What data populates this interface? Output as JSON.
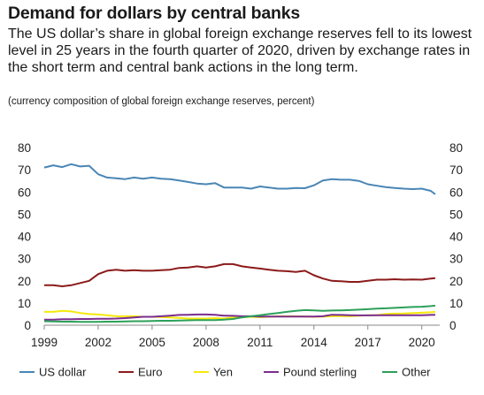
{
  "header": {
    "title": "Demand for dollars by central banks",
    "subtitle": "The US dollar’s share in global foreign exchange reserves fell to its lowest level in 25 years in the fourth quarter of 2020, driven by exchange rates in the short term and central bank actions in the long term.",
    "note": "(currency composition of global foreign exchange reserves, percent)"
  },
  "chart_data": {
    "type": "line",
    "title": "Demand for dollars by central banks",
    "xlabel": "",
    "ylabel": "",
    "xlim": [
      1999,
      2021.0
    ],
    "ylim": [
      0,
      80
    ],
    "grid": false,
    "legend_position": "bottom",
    "x_ticks": [
      1999,
      2002,
      2005,
      2008,
      2011,
      2014,
      2017,
      2020
    ],
    "x_tick_labels": [
      "1999",
      "2002",
      "2005",
      "2008",
      "2011",
      "2014",
      "2017",
      "2020"
    ],
    "y_ticks": [
      0,
      10,
      20,
      30,
      40,
      50,
      60,
      70,
      80
    ],
    "y_tick_labels": [
      "0",
      "10",
      "20",
      "30",
      "40",
      "50",
      "60",
      "70",
      "80"
    ],
    "x": [
      1999.0,
      1999.5,
      2000.0,
      2000.5,
      2001.0,
      2001.5,
      2002.0,
      2002.5,
      2003.0,
      2003.5,
      2004.0,
      2004.5,
      2005.0,
      2005.5,
      2006.0,
      2006.5,
      2007.0,
      2007.5,
      2008.0,
      2008.5,
      2009.0,
      2009.5,
      2010.0,
      2010.5,
      2011.0,
      2011.5,
      2012.0,
      2012.5,
      2013.0,
      2013.5,
      2014.0,
      2014.5,
      2015.0,
      2015.5,
      2016.0,
      2016.5,
      2017.0,
      2017.5,
      2018.0,
      2018.5,
      2019.0,
      2019.5,
      2020.0,
      2020.5,
      2020.75
    ],
    "series": [
      {
        "name": "US dollar",
        "color": "#4a86b5",
        "values": [
          71.0,
          72.0,
          71.2,
          72.5,
          71.5,
          71.8,
          68.0,
          66.5,
          66.2,
          65.8,
          66.5,
          66.0,
          66.5,
          66.0,
          65.8,
          65.2,
          64.5,
          63.8,
          63.5,
          64.0,
          62.0,
          62.0,
          62.0,
          61.5,
          62.5,
          62.0,
          61.5,
          61.5,
          61.8,
          61.7,
          63.0,
          65.2,
          65.8,
          65.5,
          65.5,
          65.0,
          63.5,
          62.8,
          62.2,
          61.8,
          61.5,
          61.3,
          61.5,
          60.5,
          59.0
        ]
      },
      {
        "name": "Euro",
        "color": "#8b1a1a",
        "values": [
          18.0,
          18.0,
          17.5,
          18.0,
          19.0,
          20.0,
          23.0,
          24.5,
          25.0,
          24.5,
          24.8,
          24.5,
          24.5,
          24.8,
          25.0,
          25.8,
          26.0,
          26.5,
          26.0,
          26.5,
          27.5,
          27.5,
          26.5,
          26.0,
          25.5,
          25.0,
          24.5,
          24.3,
          24.0,
          24.5,
          22.5,
          21.0,
          20.0,
          19.8,
          19.5,
          19.5,
          20.0,
          20.5,
          20.5,
          20.7,
          20.5,
          20.6,
          20.5,
          21.0,
          21.2
        ]
      },
      {
        "name": "Yen",
        "color": "#f5e90a",
        "values": [
          6.0,
          6.0,
          6.5,
          6.2,
          5.5,
          5.0,
          4.8,
          4.5,
          4.0,
          4.0,
          4.0,
          3.8,
          3.8,
          3.7,
          3.5,
          3.3,
          3.0,
          3.0,
          3.0,
          3.2,
          3.0,
          3.5,
          3.7,
          3.8,
          3.6,
          3.8,
          4.0,
          4.0,
          4.0,
          3.9,
          3.8,
          3.9,
          4.0,
          4.1,
          4.0,
          4.3,
          4.5,
          4.5,
          5.0,
          5.2,
          5.3,
          5.5,
          5.6,
          5.8,
          6.0
        ]
      },
      {
        "name": "Pound sterling",
        "color": "#7b2d8e",
        "values": [
          2.5,
          2.5,
          2.7,
          2.7,
          2.8,
          2.8,
          2.9,
          2.9,
          3.0,
          3.2,
          3.5,
          3.8,
          3.8,
          4.0,
          4.3,
          4.6,
          4.7,
          4.8,
          4.8,
          4.7,
          4.3,
          4.2,
          4.0,
          4.0,
          3.9,
          3.9,
          3.9,
          3.9,
          3.9,
          3.9,
          3.9,
          4.0,
          4.7,
          4.6,
          4.5,
          4.4,
          4.4,
          4.5,
          4.5,
          4.5,
          4.5,
          4.5,
          4.5,
          4.6,
          4.7
        ]
      },
      {
        "name": "Other",
        "color": "#2ca05a",
        "values": [
          1.8,
          1.7,
          1.6,
          1.6,
          1.5,
          1.5,
          1.5,
          1.6,
          1.6,
          1.7,
          1.8,
          1.8,
          1.9,
          2.0,
          2.0,
          2.1,
          2.2,
          2.3,
          2.3,
          2.3,
          2.5,
          2.8,
          3.5,
          4.0,
          4.5,
          5.0,
          5.5,
          6.0,
          6.5,
          6.8,
          6.7,
          6.5,
          6.6,
          6.7,
          6.8,
          7.0,
          7.2,
          7.5,
          7.6,
          7.8,
          8.0,
          8.2,
          8.3,
          8.6,
          8.8
        ]
      }
    ]
  }
}
